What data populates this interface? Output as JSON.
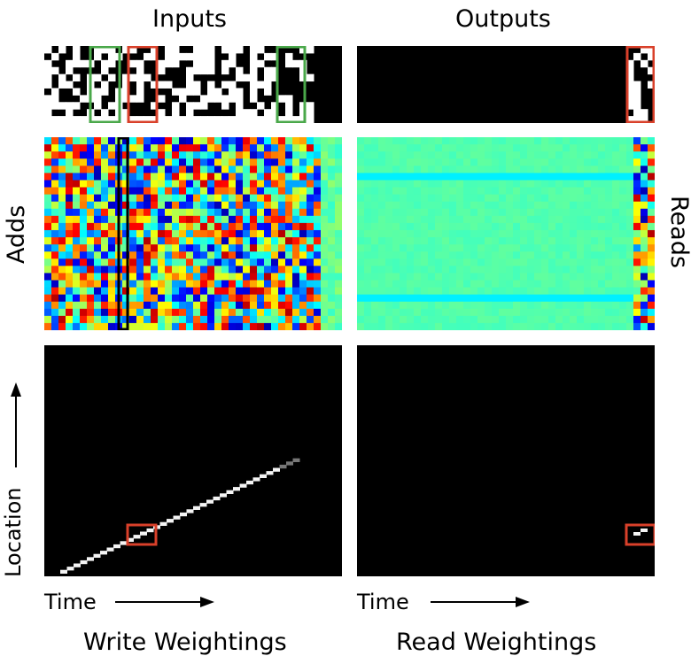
{
  "titles": {
    "inputs": "Inputs",
    "outputs": "Outputs",
    "adds": "Adds",
    "reads": "Reads",
    "location": "Location",
    "time_left": "Time",
    "time_right": "Time",
    "write_weightings": "Write Weightings",
    "read_weightings": "Read Weightings"
  },
  "colors": {
    "highlight_red": "#d9402a",
    "highlight_green": "#4aa84a",
    "highlight_black": "#000000"
  },
  "panels": {
    "inputs": "binary-sequence",
    "outputs": "binary-sequence-output",
    "adds": "jet-heatmap",
    "reads": "jet-heatmap",
    "write_weightings": "grayscale-diagonal",
    "read_weightings": "grayscale-dark"
  }
}
